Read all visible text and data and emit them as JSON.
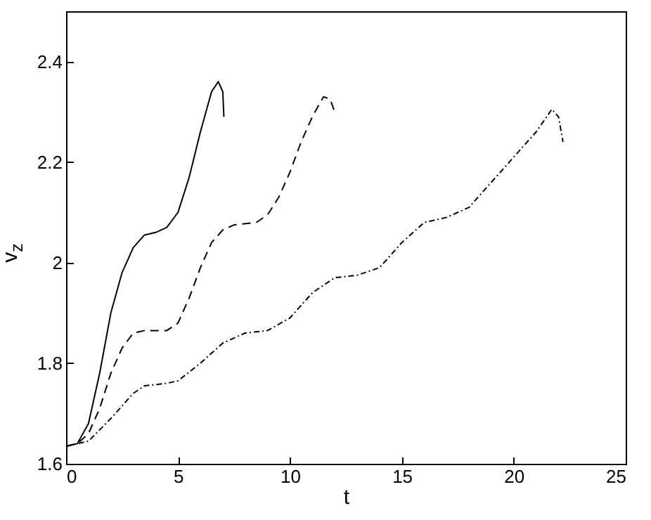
{
  "chart_data": {
    "type": "line",
    "xlabel": "t",
    "ylabel": "v$_{z}$",
    "xlim": [
      0,
      25
    ],
    "ylim": [
      1.6,
      2.5
    ],
    "xticks": [
      0,
      5,
      10,
      15,
      20,
      25
    ],
    "yticks": [
      1.6,
      1.8,
      2,
      2.2,
      2.4
    ],
    "grid": false,
    "marker": "none",
    "series": [
      {
        "color": "#000000",
        "line_style": "solid",
        "x": [
          0,
          0.5,
          1,
          1.5,
          2,
          2.5,
          3,
          3.5,
          4,
          4.5,
          5,
          5.5,
          6,
          6.5,
          6.8,
          7,
          7.05
        ],
        "values": [
          1.635,
          1.64,
          1.68,
          1.78,
          1.9,
          1.98,
          2.03,
          2.055,
          2.06,
          2.07,
          2.1,
          2.17,
          2.26,
          2.34,
          2.36,
          2.34,
          2.29
        ]
      },
      {
        "color": "#000000",
        "line_style": "dashed",
        "x": [
          0,
          0.5,
          1,
          1.5,
          2,
          2.5,
          3,
          3.5,
          4.5,
          5,
          5.5,
          6,
          6.5,
          7,
          7.5,
          8.5,
          9,
          9.5,
          10,
          10.5,
          11,
          11.5,
          11.8,
          12
        ],
        "values": [
          1.635,
          1.64,
          1.66,
          1.71,
          1.78,
          1.83,
          1.86,
          1.865,
          1.865,
          1.88,
          1.93,
          1.99,
          2.04,
          2.065,
          2.075,
          2.08,
          2.095,
          2.13,
          2.18,
          2.24,
          2.29,
          2.33,
          2.325,
          2.3
        ]
      },
      {
        "color": "#000000",
        "line_style": "dashdot",
        "x": [
          0,
          1,
          2,
          3,
          3.5,
          4.5,
          5,
          6,
          7,
          8,
          9,
          10,
          11,
          12,
          13,
          14,
          15,
          16,
          17,
          18,
          19,
          20,
          21,
          21.7,
          22,
          22.2
        ],
        "values": [
          1.635,
          1.645,
          1.69,
          1.74,
          1.755,
          1.76,
          1.765,
          1.8,
          1.84,
          1.86,
          1.865,
          1.89,
          1.94,
          1.97,
          1.975,
          1.99,
          2.04,
          2.08,
          2.09,
          2.11,
          2.16,
          2.21,
          2.26,
          2.305,
          2.29,
          2.24
        ]
      }
    ]
  }
}
